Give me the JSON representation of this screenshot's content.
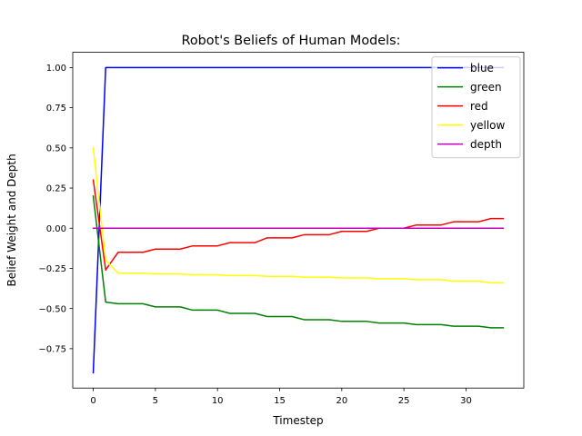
{
  "chart_data": {
    "type": "line",
    "title": "Robot's Beliefs of Human Models:",
    "xlabel": "Timestep",
    "ylabel": "Belief Weight and Depth",
    "xlim": [
      -1.65,
      34.65
    ],
    "ylim": [
      -0.995,
      1.095
    ],
    "xticks": [
      0,
      5,
      10,
      15,
      20,
      25,
      30
    ],
    "yticks": [
      -0.75,
      -0.5,
      -0.25,
      0.0,
      0.25,
      0.5,
      0.75,
      1.0
    ],
    "ytick_labels": [
      "−0.75",
      "−0.50",
      "−0.25",
      "0.00",
      "0.25",
      "0.50",
      "0.75",
      "1.00"
    ],
    "legend_position": "upper-right",
    "grid": false,
    "x": [
      0,
      1,
      2,
      3,
      4,
      5,
      6,
      7,
      8,
      9,
      10,
      11,
      12,
      13,
      14,
      15,
      16,
      17,
      18,
      19,
      20,
      21,
      22,
      23,
      24,
      25,
      26,
      27,
      28,
      29,
      30,
      31,
      32,
      33
    ],
    "series": [
      {
        "name": "blue",
        "color": "#0000ff",
        "values": [
          -0.9,
          1.0,
          1.0,
          1.0,
          1.0,
          1.0,
          1.0,
          1.0,
          1.0,
          1.0,
          1.0,
          1.0,
          1.0,
          1.0,
          1.0,
          1.0,
          1.0,
          1.0,
          1.0,
          1.0,
          1.0,
          1.0,
          1.0,
          1.0,
          1.0,
          1.0,
          1.0,
          1.0,
          1.0,
          1.0,
          1.0,
          1.0,
          1.0,
          1.0
        ]
      },
      {
        "name": "green",
        "color": "#008000",
        "values": [
          0.2,
          -0.46,
          -0.47,
          -0.47,
          -0.47,
          -0.49,
          -0.49,
          -0.49,
          -0.51,
          -0.51,
          -0.51,
          -0.53,
          -0.53,
          -0.53,
          -0.55,
          -0.55,
          -0.55,
          -0.57,
          -0.57,
          -0.57,
          -0.58,
          -0.58,
          -0.58,
          -0.59,
          -0.59,
          -0.59,
          -0.6,
          -0.6,
          -0.6,
          -0.61,
          -0.61,
          -0.61,
          -0.62,
          -0.62
        ]
      },
      {
        "name": "red",
        "color": "#ff0000",
        "values": [
          0.3,
          -0.26,
          -0.15,
          -0.15,
          -0.15,
          -0.13,
          -0.13,
          -0.13,
          -0.11,
          -0.11,
          -0.11,
          -0.09,
          -0.09,
          -0.09,
          -0.06,
          -0.06,
          -0.06,
          -0.04,
          -0.04,
          -0.04,
          -0.02,
          -0.02,
          -0.02,
          0.0,
          0.0,
          0.0,
          0.02,
          0.02,
          0.02,
          0.04,
          0.04,
          0.04,
          0.06,
          0.06
        ]
      },
      {
        "name": "yellow",
        "color": "#ffff00",
        "values": [
          0.5,
          -0.2,
          -0.28,
          -0.28,
          -0.28,
          -0.285,
          -0.285,
          -0.285,
          -0.29,
          -0.29,
          -0.29,
          -0.295,
          -0.295,
          -0.295,
          -0.3,
          -0.3,
          -0.3,
          -0.305,
          -0.305,
          -0.305,
          -0.31,
          -0.31,
          -0.31,
          -0.315,
          -0.315,
          -0.315,
          -0.32,
          -0.32,
          -0.32,
          -0.33,
          -0.33,
          -0.33,
          -0.34,
          -0.34
        ]
      },
      {
        "name": "depth",
        "color": "#bf00bf",
        "values": [
          0,
          0,
          0,
          0,
          0,
          0,
          0,
          0,
          0,
          0,
          0,
          0,
          0,
          0,
          0,
          0,
          0,
          0,
          0,
          0,
          0,
          0,
          0,
          0,
          0,
          0,
          0,
          0,
          0,
          0,
          0,
          0,
          0,
          0
        ]
      }
    ]
  }
}
